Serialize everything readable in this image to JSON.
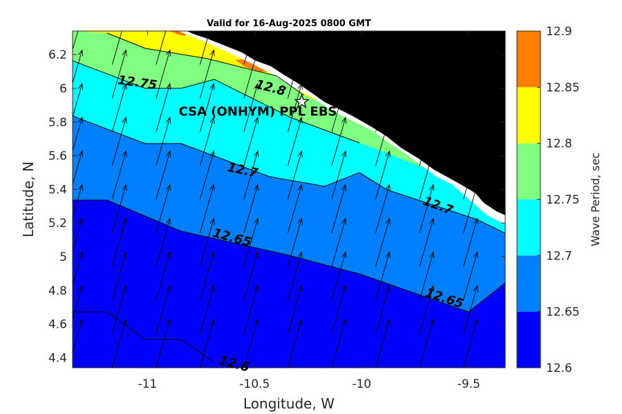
{
  "chart_data": {
    "type": "filled-contour",
    "title": "Valid for 16-Aug-2025 0800 GMT",
    "xlabel": "Longitude, W",
    "ylabel": "Latitude, N",
    "xlim": [
      -11.35,
      -9.33
    ],
    "ylim": [
      4.34,
      6.34
    ],
    "x_ticks": [
      -11,
      -10.5,
      -10,
      -9.5
    ],
    "x_tick_labels": [
      "-11",
      "-10.5",
      "-10",
      "-9.5"
    ],
    "y_ticks": [
      4.4,
      4.6,
      4.8,
      5,
      5.2,
      5.4,
      5.6,
      5.8,
      6,
      6.2
    ],
    "y_tick_labels": [
      "4.4",
      "4.6",
      "4.8",
      "5",
      "5.2",
      "5.4",
      "5.6",
      "5.8",
      "6",
      "6.2"
    ],
    "colorbar": {
      "label": "Wave Period, sec",
      "levels": [
        12.6,
        12.65,
        12.7,
        12.75,
        12.8,
        12.85,
        12.9
      ],
      "level_labels": [
        "12.6",
        "12.65",
        "12.7",
        "12.75",
        "12.8",
        "12.85",
        "12.9"
      ],
      "colors": [
        "#0000ff",
        "#0080ff",
        "#00ffff",
        "#80ff80",
        "#ffff00",
        "#ff8000"
      ]
    },
    "land_color": "#000000",
    "contour_labels": [
      {
        "text": "12.75",
        "lon": -11.05,
        "lat": 6.01,
        "angle": 8
      },
      {
        "text": "12.8",
        "lon": -10.43,
        "lat": 5.98,
        "angle": 15
      },
      {
        "text": "12.7",
        "lon": -10.56,
        "lat": 5.49,
        "angle": 12
      },
      {
        "text": "12.7",
        "lon": -9.65,
        "lat": 5.28,
        "angle": 20
      },
      {
        "text": "12.65",
        "lon": -10.61,
        "lat": 5.09,
        "angle": 15
      },
      {
        "text": "12.65",
        "lon": -9.62,
        "lat": 4.73,
        "angle": 18
      },
      {
        "text": "12.6",
        "lon": -10.6,
        "lat": 4.34,
        "angle": 15
      }
    ],
    "station": {
      "name": "CSA (ONHYM) PPL EBS",
      "lon": -10.28,
      "lat": 5.92
    },
    "vectors": {
      "grid_step_lon": 0.205,
      "grid_step_lat": 0.2,
      "direction": "north-northeast"
    },
    "grid": false
  }
}
